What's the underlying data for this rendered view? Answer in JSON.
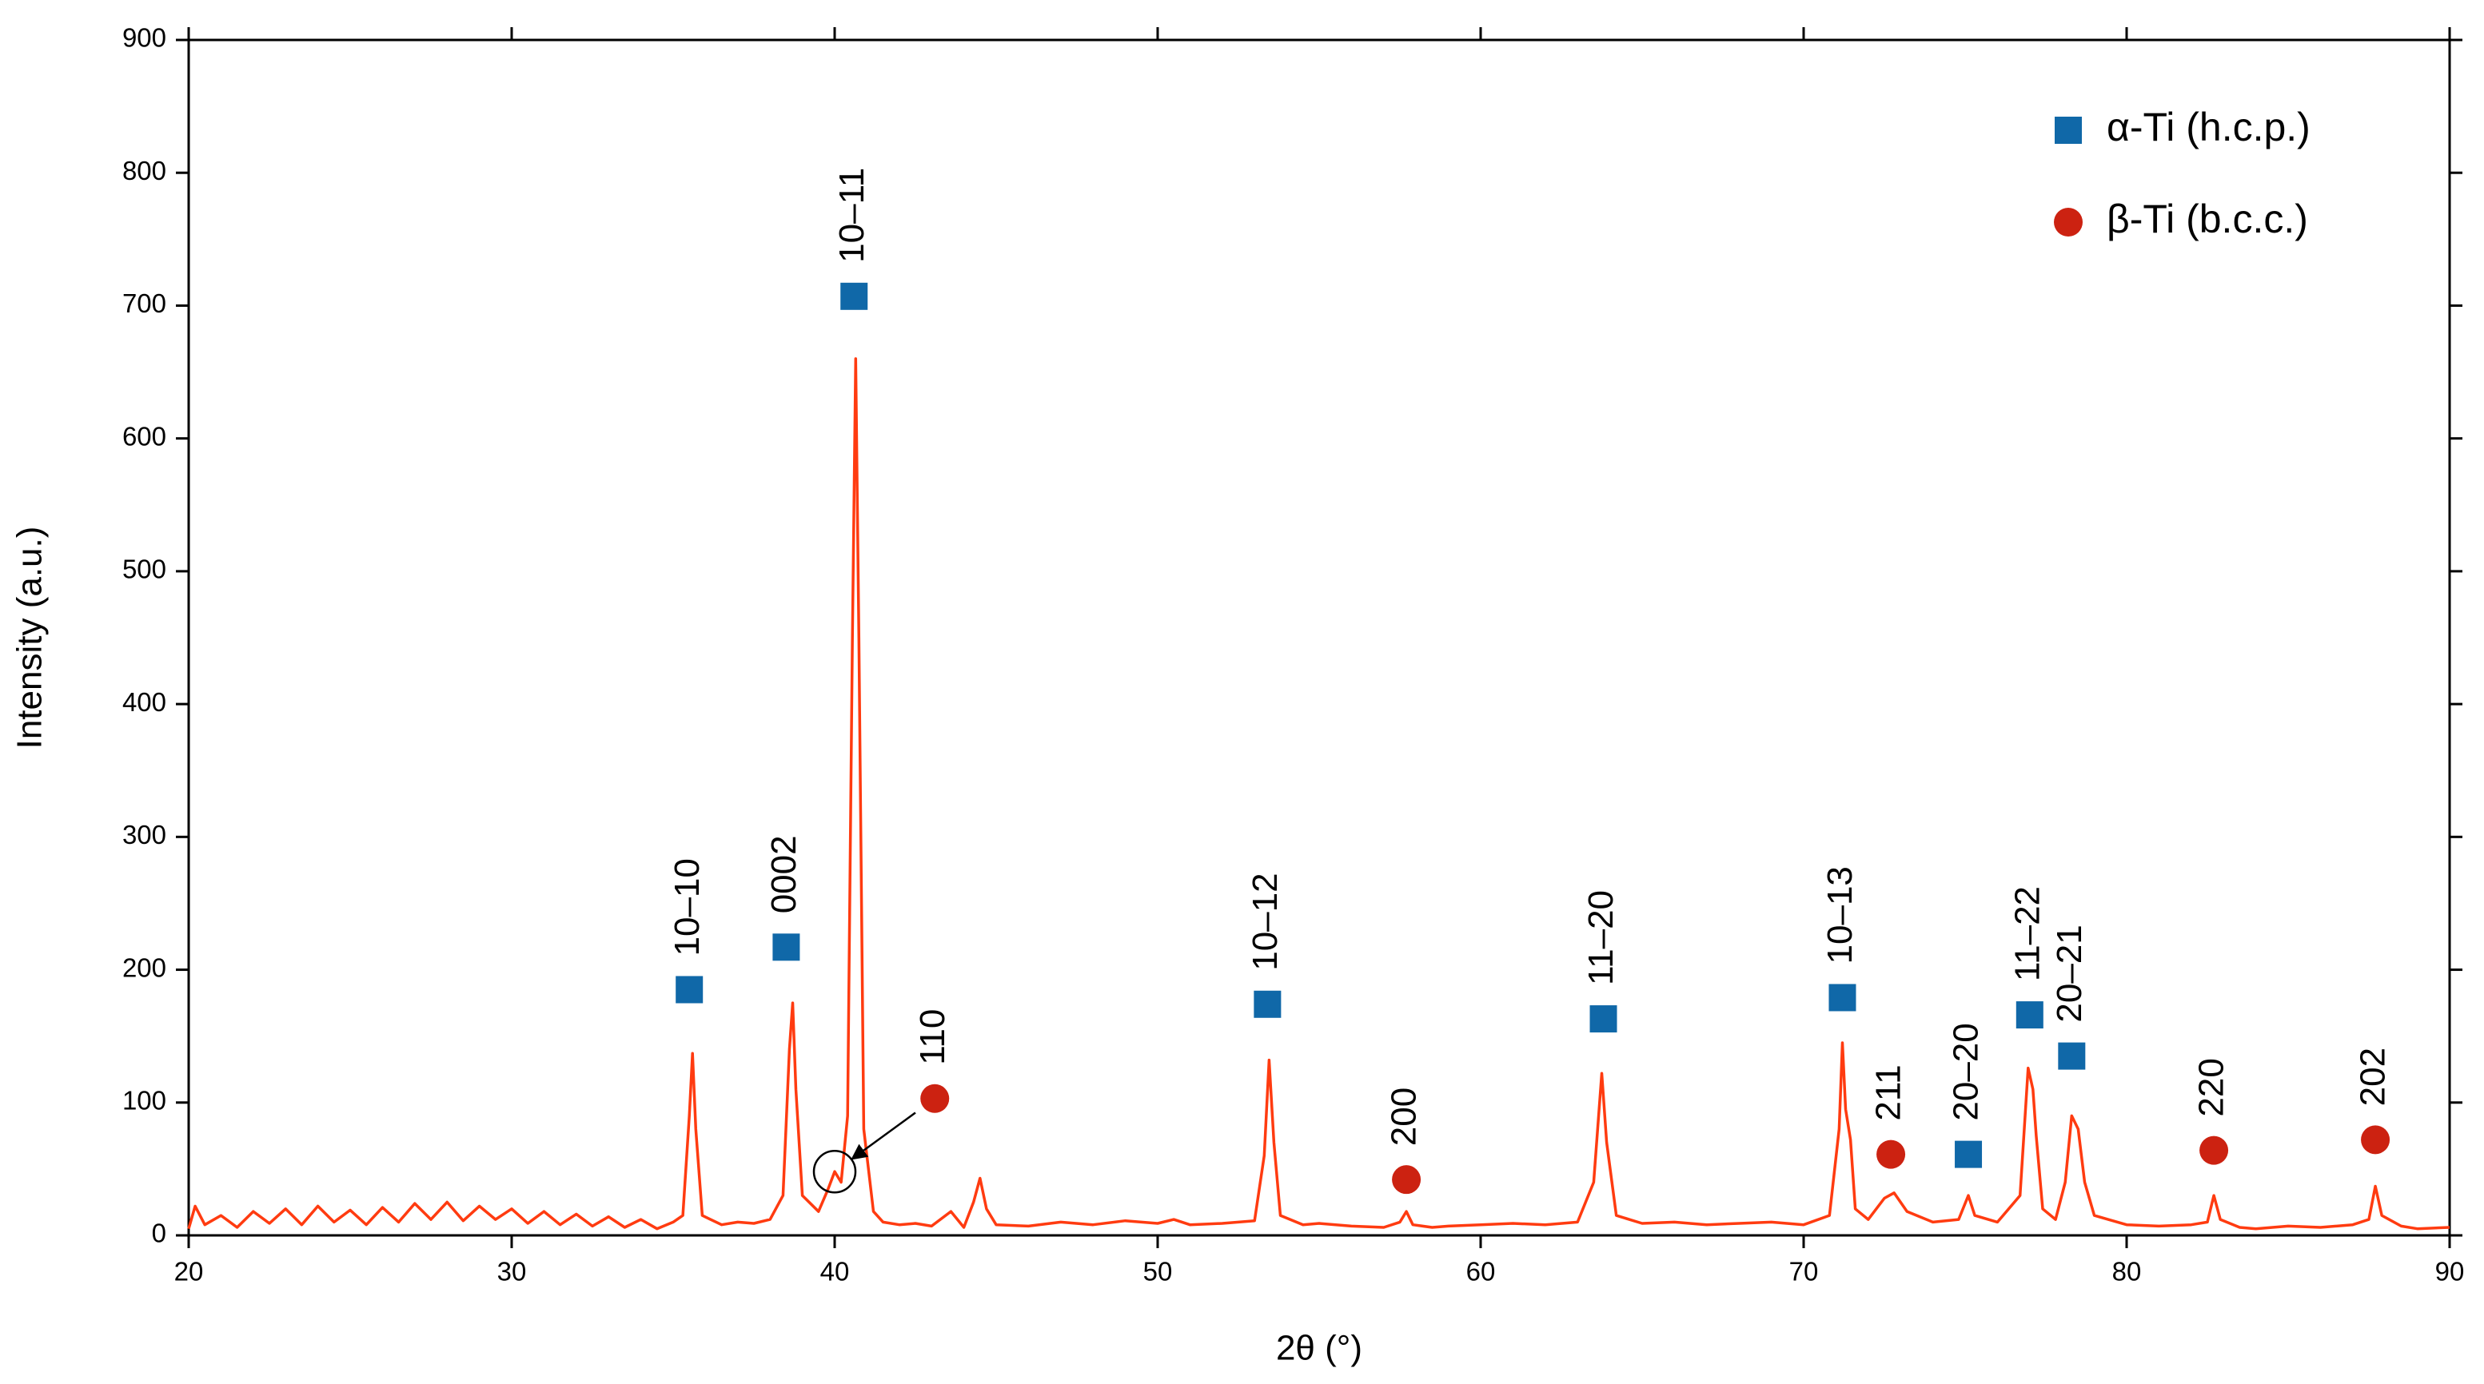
{
  "chart_data": {
    "type": "line",
    "xlabel": "2θ (°)",
    "ylabel": "Intensity (a.u.)",
    "xlim": [
      20,
      90
    ],
    "xticks": [
      20,
      30,
      40,
      50,
      60,
      70,
      80,
      90
    ],
    "ylim": [
      0,
      900
    ],
    "yticks": [
      0,
      100,
      200,
      300,
      400,
      500,
      600,
      700,
      800,
      900
    ],
    "color": "#ff3b10",
    "x": [
      20,
      20.2,
      20.5,
      21,
      21.5,
      22,
      22.5,
      23,
      23.5,
      24,
      24.5,
      25,
      25.5,
      26,
      26.5,
      27,
      27.5,
      28,
      28.5,
      29,
      29.5,
      30,
      30.5,
      31,
      31.5,
      32,
      32.5,
      33,
      33.5,
      34,
      34.5,
      35,
      35.3,
      35.5,
      35.6,
      35.7,
      35.9,
      36.5,
      37,
      37.5,
      38,
      38.4,
      38.6,
      38.7,
      38.8,
      39,
      39.5,
      39.8,
      40,
      40.2,
      40.4,
      40.55,
      40.65,
      40.75,
      40.9,
      41.2,
      41.5,
      42,
      42.5,
      43,
      43.6,
      44,
      44.3,
      44.5,
      44.7,
      45,
      46,
      47,
      48,
      49,
      50,
      50.5,
      51,
      52,
      53,
      53.3,
      53.45,
      53.6,
      53.8,
      54.5,
      55,
      56,
      57,
      57.5,
      57.7,
      57.9,
      58.5,
      59,
      60,
      61,
      62,
      63,
      63.5,
      63.75,
      63.9,
      64.2,
      65,
      66,
      67,
      68,
      69,
      70,
      70.8,
      71.1,
      71.2,
      71.3,
      71.45,
      71.6,
      72,
      72.5,
      72.8,
      73.2,
      74,
      74.8,
      75.1,
      75.3,
      76,
      76.7,
      76.95,
      77.1,
      77.2,
      77.4,
      77.8,
      78.1,
      78.3,
      78.5,
      78.7,
      79,
      80,
      81,
      82,
      82.5,
      82.7,
      82.9,
      83.5,
      84,
      85,
      86,
      87,
      87.5,
      87.7,
      87.9,
      88.5,
      89,
      90
    ],
    "values": [
      5,
      22,
      8,
      15,
      6,
      18,
      9,
      20,
      8,
      22,
      10,
      19,
      8,
      21,
      10,
      24,
      12,
      25,
      11,
      22,
      12,
      20,
      9,
      18,
      8,
      16,
      7,
      14,
      6,
      12,
      5,
      10,
      15,
      90,
      137,
      80,
      15,
      8,
      10,
      9,
      12,
      30,
      140,
      175,
      110,
      30,
      18,
      35,
      48,
      40,
      90,
      450,
      660,
      450,
      80,
      18,
      10,
      8,
      9,
      7,
      18,
      6,
      25,
      43,
      20,
      8,
      7,
      10,
      8,
      11,
      9,
      12,
      8,
      9,
      11,
      60,
      132,
      70,
      15,
      8,
      9,
      7,
      6,
      10,
      18,
      8,
      6,
      7,
      8,
      9,
      8,
      10,
      40,
      122,
      70,
      15,
      9,
      10,
      8,
      9,
      10,
      8,
      15,
      80,
      145,
      95,
      72,
      20,
      12,
      28,
      32,
      18,
      10,
      12,
      30,
      15,
      10,
      30,
      126,
      110,
      75,
      20,
      12,
      40,
      90,
      80,
      40,
      15,
      8,
      7,
      8,
      10,
      30,
      12,
      6,
      5,
      7,
      6,
      8,
      12,
      37,
      15,
      7,
      5,
      6
    ],
    "phases": [
      {
        "name": "α-Ti (h.c.p.)",
        "color": "#1068a8",
        "marker": "square",
        "x": [
          35.5,
          38.5,
          40.6,
          53.4,
          63.8,
          71.2,
          75.1,
          77.0,
          78.3
        ],
        "values": [
          185,
          217,
          707,
          174,
          163,
          179,
          61,
          166,
          135
        ],
        "labels": [
          "10–10",
          "0002",
          "10–11",
          "10–12",
          "11–20",
          "10–13",
          "20–20",
          "11–22",
          "20–21"
        ]
      },
      {
        "name": "β-Ti (b.c.c.)",
        "color": "#cc2211",
        "marker": "circle",
        "x": [
          43.1,
          57.7,
          72.7,
          82.7,
          87.7
        ],
        "values": [
          103,
          42,
          61,
          64,
          72
        ],
        "labels": [
          "110",
          "200",
          "211",
          "220",
          "202"
        ]
      }
    ],
    "highlight": {
      "x": 40,
      "y": 48
    }
  }
}
